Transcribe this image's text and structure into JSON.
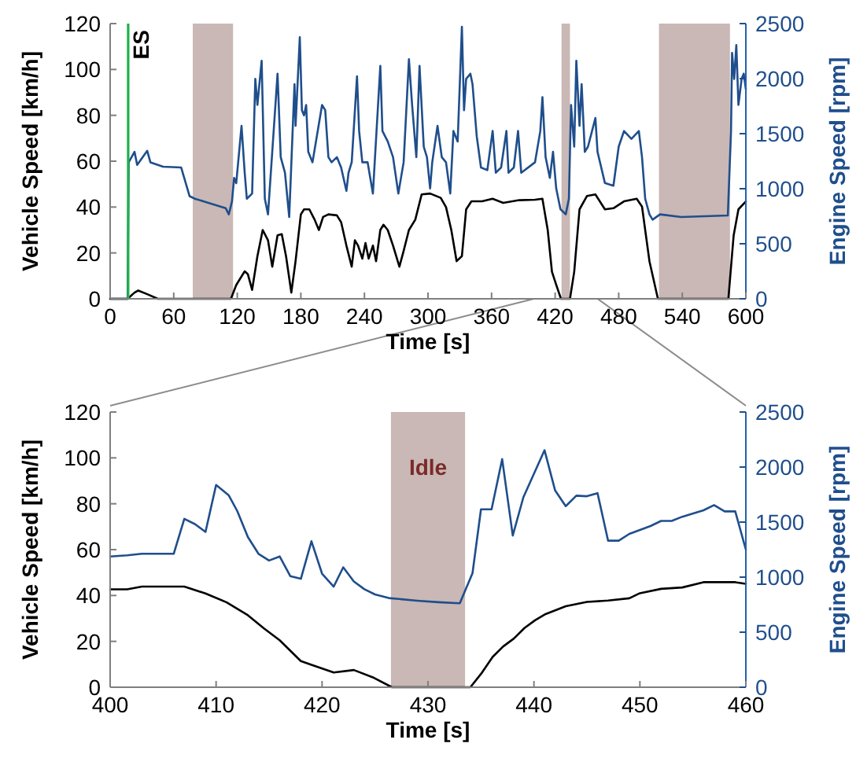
{
  "chart_data": [
    {
      "type": "line",
      "xlabel": "Time [s]",
      "ylabel": "Vehicle Speed [km/h]",
      "y2label": "Engine Speed [rpm]",
      "xlim": [
        0,
        600
      ],
      "xticks": [
        0,
        60,
        120,
        180,
        240,
        300,
        360,
        420,
        480,
        540,
        600
      ],
      "ylim": [
        0,
        120
      ],
      "yticks": [
        0,
        20,
        40,
        60,
        80,
        100,
        120
      ],
      "y2lim": [
        0,
        2500
      ],
      "y2ticks": [
        0,
        500,
        1000,
        1500,
        2000,
        2500
      ],
      "bands": [
        {
          "axis": "x",
          "from": 78,
          "to": 116,
          "color": "#c9b8b5"
        },
        {
          "axis": "x",
          "from": 426,
          "to": 434,
          "color": "#c9b8b5"
        },
        {
          "axis": "x",
          "from": 518,
          "to": 585,
          "color": "#c9b8b5"
        }
      ],
      "ref_lines": [
        {
          "axis": "x",
          "value": 17,
          "label": "ES",
          "color": "#22b04b"
        }
      ],
      "series": [
        {
          "axis": "y2",
          "color": "#1f4e8c",
          "x": [
            0,
            16.5,
            17.5,
            23,
            25.5,
            35,
            38,
            50,
            67,
            75,
            80,
            109,
            112,
            115,
            117,
            119,
            124,
            127,
            129,
            134,
            137,
            139,
            143,
            146,
            149,
            151,
            158,
            161,
            165,
            169,
            174,
            175,
            179,
            181,
            183,
            185,
            187,
            191,
            200,
            203,
            206,
            209,
            214,
            218,
            223,
            225,
            228,
            233,
            235,
            238,
            243,
            248,
            255,
            257,
            262,
            267,
            272,
            277,
            282,
            285,
            289,
            292,
            296,
            299,
            302,
            304,
            309,
            313,
            317,
            321,
            324,
            328,
            332,
            334,
            336,
            340,
            342,
            346,
            350,
            356,
            361,
            364,
            369,
            374,
            376,
            381,
            385,
            388,
            401,
            406,
            408,
            411,
            415,
            418,
            421,
            423,
            425,
            430,
            433,
            435,
            438,
            440,
            443,
            445,
            448,
            451,
            458,
            460,
            467,
            475,
            480,
            485,
            492,
            499,
            502,
            505,
            509,
            512,
            519,
            539,
            583,
            586,
            587,
            589,
            591,
            593,
            596,
            598,
            600
          ],
          "values": [
            0,
            0,
            1240,
            1335,
            1216,
            1344,
            1240,
            1200,
            1193,
            932,
            909,
            824,
            767,
            885,
            1098,
            1050,
            1571,
            1145,
            909,
            956,
            1997,
            1761,
            2163,
            909,
            767,
            1050,
            2045,
            1287,
            1145,
            743,
            1950,
            1571,
            2376,
            1713,
            1666,
            1761,
            1335,
            1240,
            1761,
            1713,
            1287,
            1240,
            1287,
            1193,
            980,
            1145,
            1240,
            2021,
            1524,
            1240,
            1240,
            956,
            2116,
            1524,
            1429,
            1287,
            956,
            1240,
            2177,
            1761,
            1287,
            2116,
            1382,
            1287,
            1003,
            1240,
            1571,
            1287,
            1240,
            956,
            1524,
            1429,
            2471,
            1713,
            1997,
            2045,
            1950,
            1477,
            1193,
            1169,
            1524,
            1145,
            1193,
            1524,
            1145,
            1193,
            1524,
            1145,
            1240,
            1524,
            1832,
            1287,
            1098,
            1335,
            1003,
            909,
            814,
            767,
            909,
            1761,
            1382,
            2163,
            1571,
            1950,
            1335,
            1382,
            1642,
            1335,
            1051,
            1027,
            1382,
            1524,
            1453,
            1524,
            1287,
            909,
            767,
            719,
            767,
            743,
            757,
            1524,
            2234,
            1997,
            2305,
            1761,
            1997,
            2045,
            1903
          ]
        },
        {
          "color": "#000000",
          "x": [
            0,
            16.5,
            23,
            26.5,
            35,
            45,
            114,
            119,
            127,
            130,
            134,
            139,
            144,
            149,
            153,
            158,
            162,
            166,
            171,
            175,
            180,
            183,
            188,
            193,
            197,
            201,
            206,
            214,
            218,
            223,
            228,
            231,
            234,
            238,
            241,
            244,
            248,
            251,
            255,
            258,
            262,
            267,
            273,
            277,
            282,
            288,
            294,
            302,
            312,
            317,
            322,
            327,
            332,
            336,
            341,
            351,
            361,
            371,
            386,
            401,
            408,
            413,
            417,
            421,
            425.5,
            434,
            438,
            443,
            450,
            458,
            467,
            475,
            485,
            497,
            502,
            509,
            517,
            583.5,
            588.5,
            593,
            600
          ],
          "values": [
            0,
            0,
            2.7,
            3.6,
            2,
            0,
            0,
            6,
            12,
            10.7,
            3.9,
            18.6,
            30,
            25.5,
            14,
            27.7,
            28.2,
            18.6,
            2.7,
            16.4,
            36.8,
            39,
            39,
            34.5,
            30,
            35.7,
            36.8,
            36.4,
            33.4,
            23.2,
            14,
            25.5,
            23.2,
            17.5,
            24.3,
            17.5,
            23.2,
            16.4,
            30,
            32.3,
            30,
            23.2,
            14,
            20.9,
            30,
            34.5,
            45.5,
            45.9,
            44,
            40,
            30,
            16.4,
            18.6,
            39,
            42.5,
            42.5,
            43.6,
            41.8,
            43,
            43.2,
            43.6,
            30,
            11.8,
            6.1,
            0,
            0,
            11.8,
            39,
            44.8,
            45.5,
            39,
            39.5,
            42.5,
            43.6,
            40.2,
            16.4,
            0,
            0,
            27.7,
            39,
            42.5
          ]
        }
      ]
    },
    {
      "type": "line",
      "xlabel": "Time [s]",
      "ylabel": "Vehicle Speed [km/h]",
      "y2label": "Engine Speed [rpm]",
      "xlim": [
        400,
        460
      ],
      "xticks": [
        400,
        410,
        420,
        430,
        440,
        450,
        460
      ],
      "ylim": [
        0,
        120
      ],
      "yticks": [
        0,
        20,
        40,
        60,
        80,
        100,
        120
      ],
      "y2lim": [
        0,
        2500
      ],
      "y2ticks": [
        0,
        500,
        1000,
        1500,
        2000,
        2500
      ],
      "bands": [
        {
          "axis": "x",
          "from": 426.5,
          "to": 433.5,
          "label": "Idle",
          "color": "#c9b8b5"
        }
      ],
      "series": [
        {
          "axis": "y2",
          "color": "#1f4e8c",
          "x": [
            400,
            401.6,
            403,
            406,
            407,
            408,
            409,
            410,
            411.2,
            412,
            413,
            414,
            415,
            416,
            417,
            418,
            419,
            420,
            421.1,
            422,
            423,
            424,
            425,
            426.3,
            429,
            431,
            433,
            434.2,
            435,
            436,
            437,
            438,
            439,
            441,
            442,
            443,
            444,
            445,
            446,
            447,
            448,
            449,
            451,
            452,
            453,
            454,
            456,
            457,
            458,
            459,
            460
          ],
          "values": [
            1188,
            1198,
            1212,
            1212,
            1529,
            1482,
            1411,
            1837,
            1742,
            1600,
            1364,
            1212,
            1151,
            1188,
            1009,
            985,
            1326,
            1032,
            914,
            1089,
            961,
            890,
            843,
            810,
            786,
            772,
            762,
            1036,
            1616,
            1616,
            2072,
            1378,
            1725,
            2153,
            1787,
            1645,
            1740,
            1735,
            1763,
            1331,
            1331,
            1393,
            1464,
            1511,
            1511,
            1549,
            1607,
            1654,
            1597,
            1597,
            1250
          ]
        },
        {
          "color": "#000000",
          "x": [
            400,
            401.6,
            403,
            407,
            409,
            411,
            413,
            414.5,
            416,
            418,
            419,
            421.1,
            423,
            424.9,
            426.6,
            434,
            435.1,
            436.1,
            437.1,
            438.1,
            439.1,
            440.1,
            441.1,
            443,
            445,
            447,
            449,
            450,
            452,
            454,
            456,
            459,
            460
          ],
          "values": [
            42.7,
            42.7,
            43.9,
            43.9,
            40.9,
            37,
            31.4,
            25.7,
            20.5,
            11.4,
            9.8,
            6.4,
            7.5,
            4.1,
            0,
            0,
            6.4,
            13.2,
            17.8,
            21.2,
            25.8,
            29.2,
            31.9,
            35.3,
            37.2,
            37.8,
            38.8,
            41,
            42.9,
            43.5,
            45.8,
            45.8,
            45.1
          ]
        }
      ]
    }
  ]
}
